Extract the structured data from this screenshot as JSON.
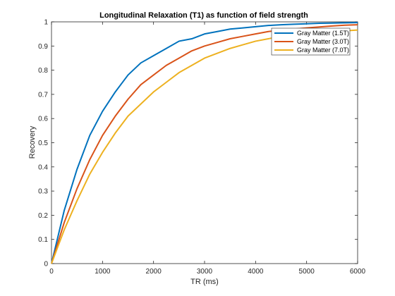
{
  "chart_data": {
    "type": "line",
    "title": "Longitudinal Relaxation (T1) as function of field strength",
    "xlabel": "TR (ms)",
    "ylabel": "Recovery",
    "xlim": [
      0,
      6000
    ],
    "ylim": [
      0,
      1
    ],
    "xticks": [
      0,
      1000,
      2000,
      3000,
      4000,
      5000,
      6000
    ],
    "yticks": [
      0,
      0.1,
      0.2,
      0.3,
      0.4,
      0.5,
      0.6,
      0.7,
      0.8,
      0.9,
      1
    ],
    "grid": false,
    "legend_position": "top-right",
    "x": [
      0,
      250,
      500,
      750,
      1000,
      1250,
      1500,
      1750,
      2000,
      2250,
      2500,
      2750,
      3000,
      3250,
      3500,
      3750,
      4000,
      4250,
      4500,
      4750,
      5000,
      5250,
      5500,
      5750,
      6000
    ],
    "series": [
      {
        "name": "Gray Matter (1.5T)",
        "color": "#0072bd",
        "values": [
          0,
          0.22,
          0.39,
          0.53,
          0.63,
          0.71,
          0.78,
          0.83,
          0.86,
          0.89,
          0.92,
          0.93,
          0.95,
          0.96,
          0.97,
          0.975,
          0.98,
          0.985,
          0.988,
          0.99,
          0.992,
          0.994,
          0.995,
          0.996,
          0.997
        ]
      },
      {
        "name": "Gray Matter (3.0T)",
        "color": "#d95319",
        "values": [
          0,
          0.17,
          0.31,
          0.43,
          0.53,
          0.61,
          0.68,
          0.74,
          0.78,
          0.82,
          0.85,
          0.88,
          0.9,
          0.915,
          0.93,
          0.94,
          0.95,
          0.96,
          0.965,
          0.97,
          0.975,
          0.979,
          0.983,
          0.986,
          0.988
        ]
      },
      {
        "name": "Gray Matter (7.0T)",
        "color": "#edb120",
        "values": [
          0,
          0.14,
          0.26,
          0.37,
          0.46,
          0.54,
          0.61,
          0.66,
          0.71,
          0.75,
          0.79,
          0.82,
          0.85,
          0.87,
          0.89,
          0.905,
          0.92,
          0.93,
          0.94,
          0.945,
          0.95,
          0.955,
          0.96,
          0.963,
          0.966
        ]
      }
    ]
  }
}
